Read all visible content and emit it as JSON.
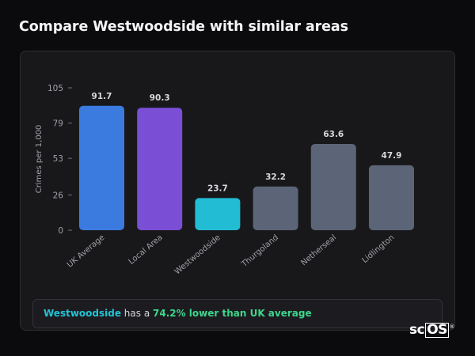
{
  "page": {
    "title": "Compare Westwoodside with similar areas"
  },
  "chart_data": {
    "type": "bar",
    "ylabel": "Crimes per 1,000",
    "xlabel": "",
    "ylim": [
      0,
      105
    ],
    "yticks": [
      0,
      26,
      53,
      79,
      105
    ],
    "grid": false,
    "categories": [
      "UK Average",
      "Local Area",
      "Westwoodside",
      "Thurgoland",
      "Netherseal",
      "Lidlington"
    ],
    "values": [
      91.7,
      90.3,
      23.7,
      32.2,
      63.6,
      47.9
    ],
    "value_labels": [
      "91.7",
      "90.3",
      "23.7",
      "32.2",
      "63.6",
      "47.9"
    ],
    "colors": [
      "#3b7be0",
      "#7a4fd6",
      "#22bcd4",
      "#5b6577",
      "#5b6577",
      "#5b6577"
    ]
  },
  "summary": {
    "area": "Westwoodside",
    "middle": " has a ",
    "comparison": "74.2% lower than UK average"
  },
  "branding": {
    "logo_text": "sc",
    "logo_box_text": "OS",
    "logo_mark": "®"
  }
}
